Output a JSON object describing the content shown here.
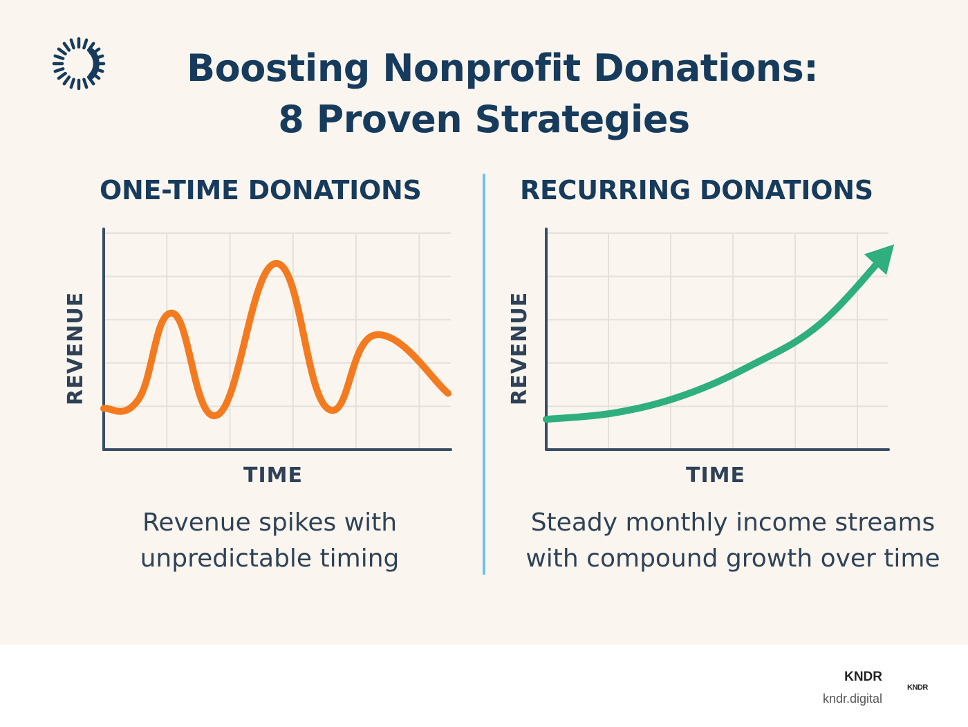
{
  "header": {
    "title_line1": "Boosting Nonprofit Donations:",
    "title_line2": "8 Proven Strategies",
    "logo_icon": "sunburst-ring-icon"
  },
  "colors": {
    "title": "#173b5c",
    "background": "#faf6ef",
    "divider": "#6cc2e8",
    "one_time_line": "#f47a1f",
    "recurring_line": "#2fae7e",
    "axis": "#3a4d66",
    "grid": "#e4e1da"
  },
  "panels": {
    "left": {
      "title": "ONE-TIME DONATIONS",
      "caption_line1": "Revenue spikes with",
      "caption_line2": "unpredictable timing"
    },
    "right": {
      "title": "RECURRING DONATIONS",
      "caption_line1": "Steady monthly income streams",
      "caption_line2": "with compound growth over time"
    }
  },
  "chart_data": [
    {
      "type": "line",
      "title": "ONE-TIME DONATIONS",
      "xlabel": "TIME",
      "ylabel": "REVENUE",
      "grid": true,
      "ticks_labeled": false,
      "series": [
        {
          "x": [
            0,
            0.1,
            0.2,
            0.33,
            0.5,
            0.65,
            0.79,
            1.0
          ],
          "values": [
            0.19,
            0.23,
            0.63,
            0.16,
            0.86,
            0.19,
            0.53,
            0.26
          ]
        }
      ]
    },
    {
      "type": "line",
      "title": "RECURRING DONATIONS",
      "xlabel": "TIME",
      "ylabel": "REVENUE",
      "grid": true,
      "ticks_labeled": false,
      "arrow_end": true,
      "series": [
        {
          "x": [
            0,
            0.2,
            0.4,
            0.6,
            0.8,
            1.0
          ],
          "values": [
            0.14,
            0.17,
            0.25,
            0.39,
            0.58,
            0.92
          ]
        }
      ]
    }
  ],
  "footer": {
    "brand_name": "KNDR",
    "brand_url": "kndr.digital",
    "brand_mark": "KNDR"
  }
}
